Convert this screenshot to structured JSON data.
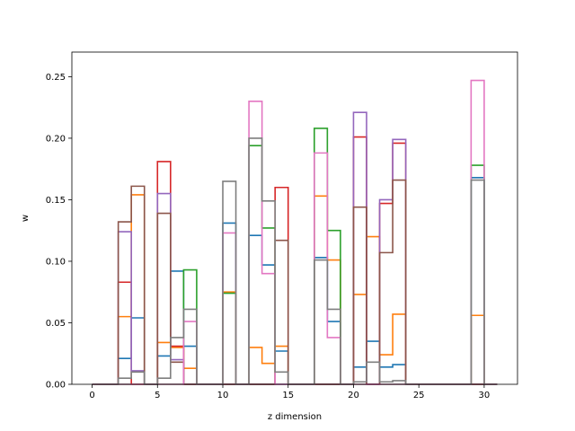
{
  "chart_data": {
    "type": "step-histogram",
    "xlabel": "z dimension",
    "ylabel": "w",
    "xlim": [
      -1.55,
      32.55
    ],
    "ylim": [
      0,
      0.27
    ],
    "xticks": [
      0,
      5,
      10,
      15,
      20,
      25,
      30
    ],
    "yticks": [
      0.0,
      0.05,
      0.1,
      0.15,
      0.2,
      0.25
    ],
    "ytick_labels": [
      "0.00",
      "0.05",
      "0.10",
      "0.15",
      "0.20",
      "0.25"
    ],
    "bins": [
      0,
      1,
      2,
      3,
      4,
      5,
      6,
      7,
      8,
      9,
      10,
      11,
      12,
      13,
      14,
      15,
      16,
      17,
      18,
      19,
      20,
      21,
      22,
      23,
      24,
      25,
      26,
      27,
      28,
      29,
      30
    ],
    "bin_width": 1,
    "series": [
      {
        "color": "#1f77b4",
        "values": [
          0,
          0,
          0.021,
          0.054,
          0,
          0.023,
          0.092,
          0.031,
          0,
          0,
          0.131,
          0,
          0.121,
          0.097,
          0.027,
          0,
          0,
          0.103,
          0.051,
          0,
          0.014,
          0.035,
          0.014,
          0.016,
          0,
          0,
          0,
          0,
          0,
          0.168,
          0
        ]
      },
      {
        "color": "#ff7f0e",
        "values": [
          0,
          0,
          0.055,
          0.154,
          0,
          0.034,
          0.03,
          0.013,
          0,
          0,
          0.075,
          0,
          0.03,
          0.017,
          0.031,
          0,
          0,
          0.153,
          0.101,
          0,
          0.073,
          0.12,
          0.024,
          0.057,
          0,
          0,
          0,
          0,
          0,
          0.056,
          0
        ]
      },
      {
        "color": "#2ca02c",
        "values": [
          0,
          0,
          0,
          0,
          0,
          0,
          0,
          0.093,
          0,
          0,
          0.074,
          0,
          0.194,
          0.127,
          0,
          0,
          0,
          0.208,
          0.125,
          0,
          0,
          0,
          0,
          0,
          0,
          0,
          0,
          0,
          0,
          0.178,
          0
        ]
      },
      {
        "color": "#d62728",
        "values": [
          0,
          0,
          0.083,
          0,
          0,
          0.181,
          0.031,
          0,
          0,
          0,
          0,
          0,
          0,
          0,
          0.16,
          0,
          0,
          0,
          0,
          0,
          0.201,
          0,
          0.147,
          0.196,
          0,
          0,
          0,
          0,
          0,
          0,
          0
        ]
      },
      {
        "color": "#9467bd",
        "values": [
          0,
          0,
          0.124,
          0.011,
          0,
          0.155,
          0.02,
          0,
          0,
          0,
          0,
          0,
          0,
          0,
          0,
          0,
          0,
          0,
          0,
          0,
          0.221,
          0,
          0.15,
          0.199,
          0,
          0,
          0,
          0,
          0,
          0,
          0
        ]
      },
      {
        "color": "#8c564b",
        "values": [
          0,
          0,
          0.132,
          0.161,
          0,
          0.139,
          0.018,
          0,
          0,
          0,
          0,
          0,
          0,
          0,
          0.117,
          0,
          0,
          0,
          0,
          0,
          0.144,
          0,
          0.107,
          0.166,
          0,
          0,
          0,
          0,
          0,
          0,
          0
        ]
      },
      {
        "color": "#e377c2",
        "values": [
          0,
          0,
          0,
          0,
          0,
          0,
          0,
          0.051,
          0,
          0,
          0.123,
          0,
          0.23,
          0.09,
          0,
          0,
          0,
          0.188,
          0.038,
          0,
          0,
          0,
          0,
          0,
          0,
          0,
          0,
          0,
          0,
          0.247,
          0
        ]
      },
      {
        "color": "#7f7f7f",
        "values": [
          0,
          0,
          0.005,
          0.01,
          0,
          0.005,
          0.038,
          0.061,
          0,
          0,
          0.165,
          0,
          0.2,
          0.149,
          0.01,
          0,
          0,
          0.101,
          0.061,
          0,
          0.002,
          0.018,
          0.002,
          0.003,
          0,
          0,
          0,
          0,
          0,
          0.166,
          0
        ]
      }
    ]
  }
}
